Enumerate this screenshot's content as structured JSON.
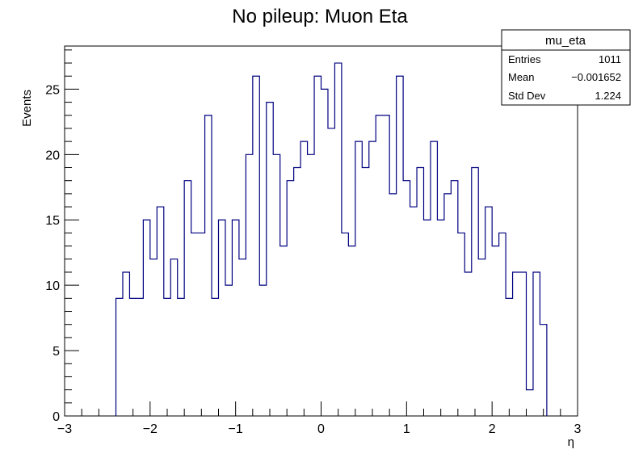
{
  "chart_data": {
    "type": "bar",
    "title": "No pileup:  Muon Eta",
    "xlabel": "η",
    "ylabel": "Events",
    "xlim": [
      -3,
      3
    ],
    "ylim": [
      0,
      28.3
    ],
    "x_ticks": [
      "−3",
      "−2",
      "−1",
      "0",
      "1",
      "2",
      "3"
    ],
    "x_tick_values": [
      -3,
      -2,
      -1,
      0,
      1,
      2,
      3
    ],
    "y_ticks": [
      "0",
      "5",
      "10",
      "15",
      "20",
      "25"
    ],
    "y_tick_values": [
      0,
      5,
      10,
      15,
      20,
      25
    ],
    "bin_width": 0.08,
    "bin_start": -2.4,
    "values": [
      9,
      11,
      9,
      9,
      15,
      12,
      16,
      9,
      12,
      9,
      18,
      14,
      14,
      23,
      9,
      15,
      10,
      15,
      12,
      20,
      26,
      10,
      24,
      20,
      13,
      18,
      19,
      21,
      20,
      26,
      25,
      22,
      27,
      14,
      13,
      21,
      19,
      21,
      23,
      23,
      17,
      26,
      18,
      16,
      19,
      15,
      21,
      15,
      17,
      18,
      14,
      11,
      19,
      12,
      16,
      13,
      14,
      9,
      11,
      11,
      2,
      11,
      7
    ],
    "line_color": "#000080",
    "grid": false,
    "legend": "none",
    "stats_box": {
      "name": "mu_eta",
      "rows": [
        {
          "label": "Entries",
          "value": "1011"
        },
        {
          "label": "Mean",
          "value": "−0.001652"
        },
        {
          "label": "Std Dev",
          "value": "1.224"
        }
      ],
      "placement": "top-right"
    }
  }
}
